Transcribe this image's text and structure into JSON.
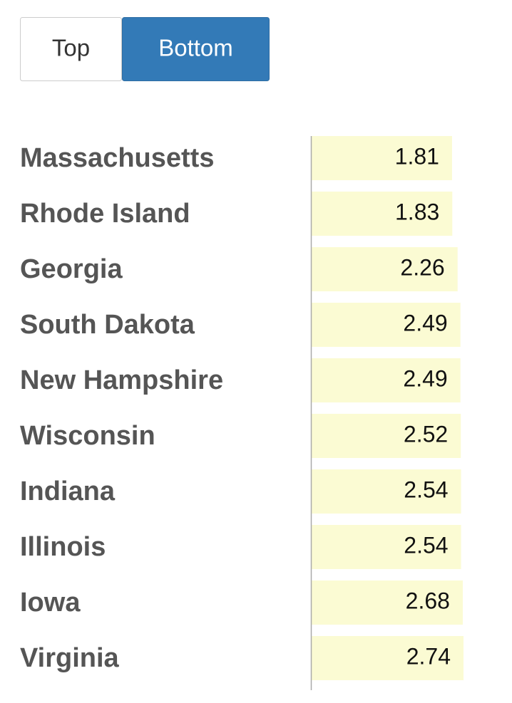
{
  "toggle": {
    "options": [
      "Top",
      "Bottom"
    ],
    "selected": 1
  },
  "chart_data": {
    "type": "bar",
    "orientation": "horizontal",
    "color": "#fbfbd3",
    "categories": [
      "Massachusetts",
      "Rhode Island",
      "Georgia",
      "South Dakota",
      "New Hampshire",
      "Wisconsin",
      "Indiana",
      "Illinois",
      "Iowa",
      "Virginia"
    ],
    "values": [
      1.81,
      1.83,
      2.26,
      2.49,
      2.49,
      2.52,
      2.54,
      2.54,
      2.68,
      2.74
    ],
    "xlim": [
      -9.6,
      2.74
    ]
  }
}
